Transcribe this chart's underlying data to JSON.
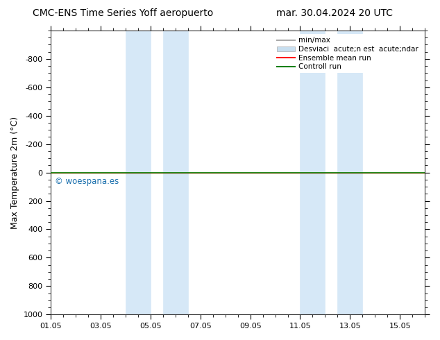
{
  "title_left": "CMC-ENS Time Series Yoff aeropuerto",
  "title_right": "mar. 30.04.2024 20 UTC",
  "ylabel": "Max Temperature 2m (°C)",
  "xtick_labels": [
    "01.05",
    "03.05",
    "05.05",
    "07.05",
    "09.05",
    "11.05",
    "13.05",
    "15.05"
  ],
  "xtick_positions": [
    1,
    3,
    5,
    7,
    9,
    11,
    13,
    15
  ],
  "ylim_bottom": -1000,
  "ylim_top": 1000,
  "ytick_positions": [
    -800,
    -600,
    -400,
    -200,
    0,
    200,
    400,
    600,
    800,
    1000
  ],
  "ytick_labels": [
    "-800",
    "-600",
    "-400",
    "-200",
    "0",
    "200",
    "400",
    "600",
    "800",
    "1000"
  ],
  "shaded_regions": [
    [
      4.0,
      5.0
    ],
    [
      5.5,
      6.5
    ],
    [
      11.0,
      12.0
    ],
    [
      12.5,
      13.5
    ]
  ],
  "shaded_color": "#d6e8f7",
  "shaded_edge_color": "#b0cce0",
  "control_run_y": 0.0,
  "control_run_color": "#008000",
  "ensemble_mean_color": "#ff0000",
  "minmax_color": "#aaaaaa",
  "watermark_text": "© woespana.es",
  "watermark_color": "#1a6fad",
  "legend_labels": [
    "min/max",
    "Desviaci  acute;n est  acute;ndar",
    "Ensemble mean run",
    "Controll run"
  ],
  "legend_colors": [
    "#aaaaaa",
    "#c8dff0",
    "#ff0000",
    "#008000"
  ],
  "background_color": "#ffffff",
  "plot_bg_color": "#ffffff"
}
